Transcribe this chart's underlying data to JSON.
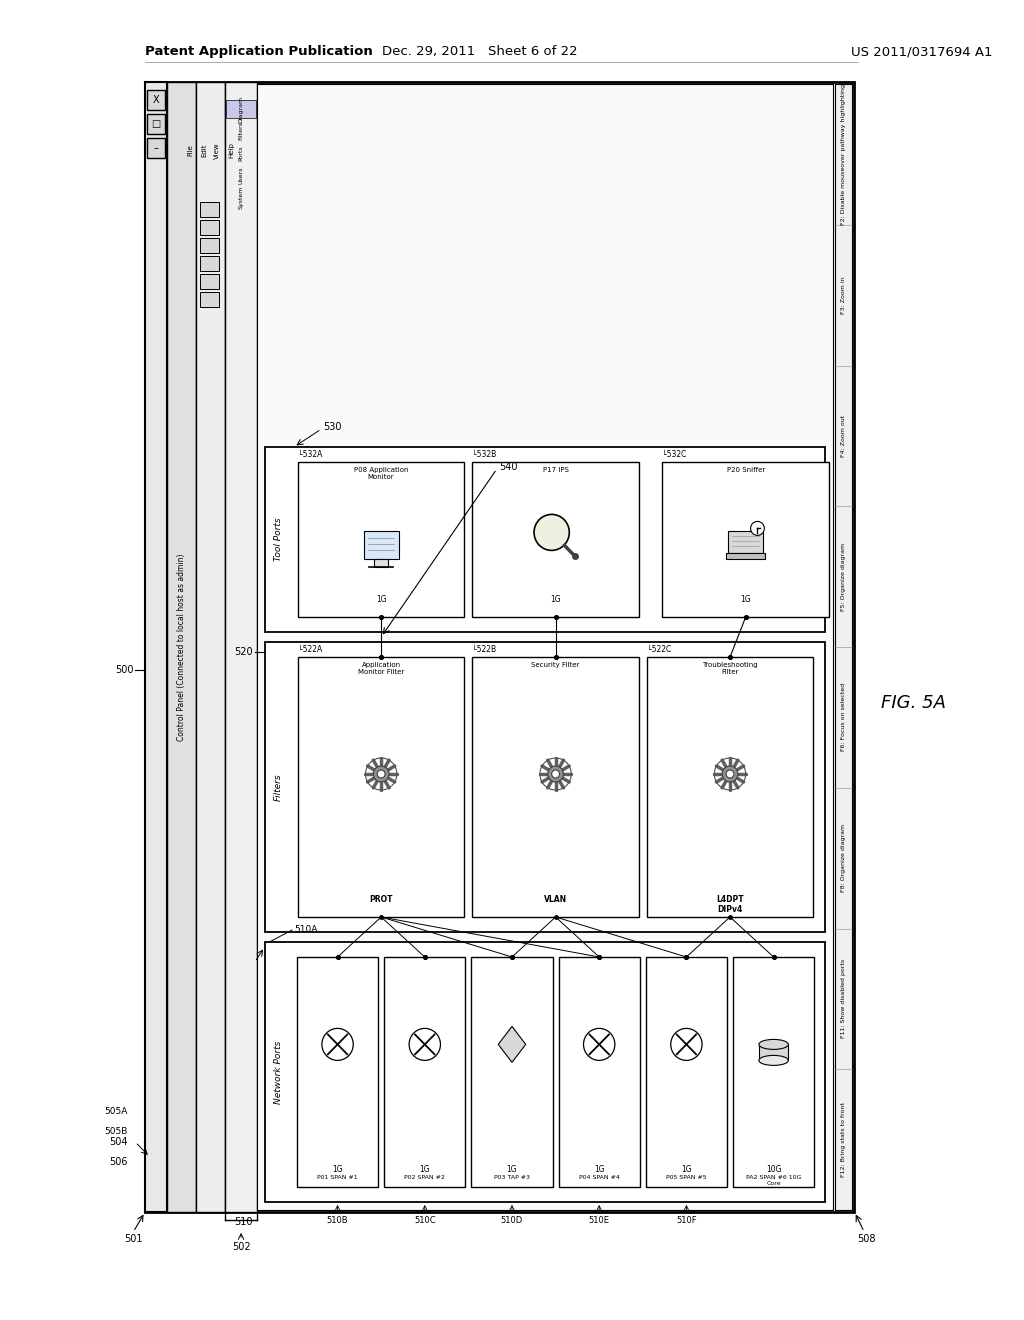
{
  "bg_color": "#ffffff",
  "header_left": "Patent Application Publication",
  "header_center": "Dec. 29, 2011   Sheet 6 of 22",
  "header_right": "US 2011/0317694 A1",
  "fig_label": "FIG. 5A",
  "window_title": "Control Panel (Connected to local host as admin)",
  "network_ports": [
    "P01 SPAN #1",
    "P02 SPAN #2",
    "P03 TAP #3",
    "P04 SPAN #4",
    "P05 SPAN #5",
    "PA2 SPAN #6 10G\nCore"
  ],
  "network_speeds": [
    "1G",
    "1G",
    "1G",
    "1G",
    "1G",
    "10G"
  ],
  "filter_names": [
    "Application\nMonitor Filter",
    "Security Filter",
    "Troubleshooting\nFilter"
  ],
  "filter_bottom_labels": [
    "PROT",
    "VLAN",
    "L4DPT\nDIPv4"
  ],
  "filter_refs": [
    "522A",
    "522B",
    "522C"
  ],
  "tool_port_names": [
    "P08 Application\nMonitor",
    "P17 IPS",
    "P20 Sniffer"
  ],
  "tool_speeds": [
    "1G",
    "1G",
    "1G"
  ],
  "tool_refs": [
    "532A",
    "532B",
    "532C"
  ],
  "sidebar_items": [
    "Diagram",
    "Filters",
    "Ports",
    "Users",
    "System"
  ],
  "rbar_labels": [
    "F2: Disable mouseover pathway highlighting",
    "F3: Zoom in",
    "F4: Zoom out",
    "F5: Organize diagram",
    "F6: Focus on selected",
    "F8: Organize diagram",
    "F11: Show disabled ports",
    "F12: Bring stats to front"
  ]
}
